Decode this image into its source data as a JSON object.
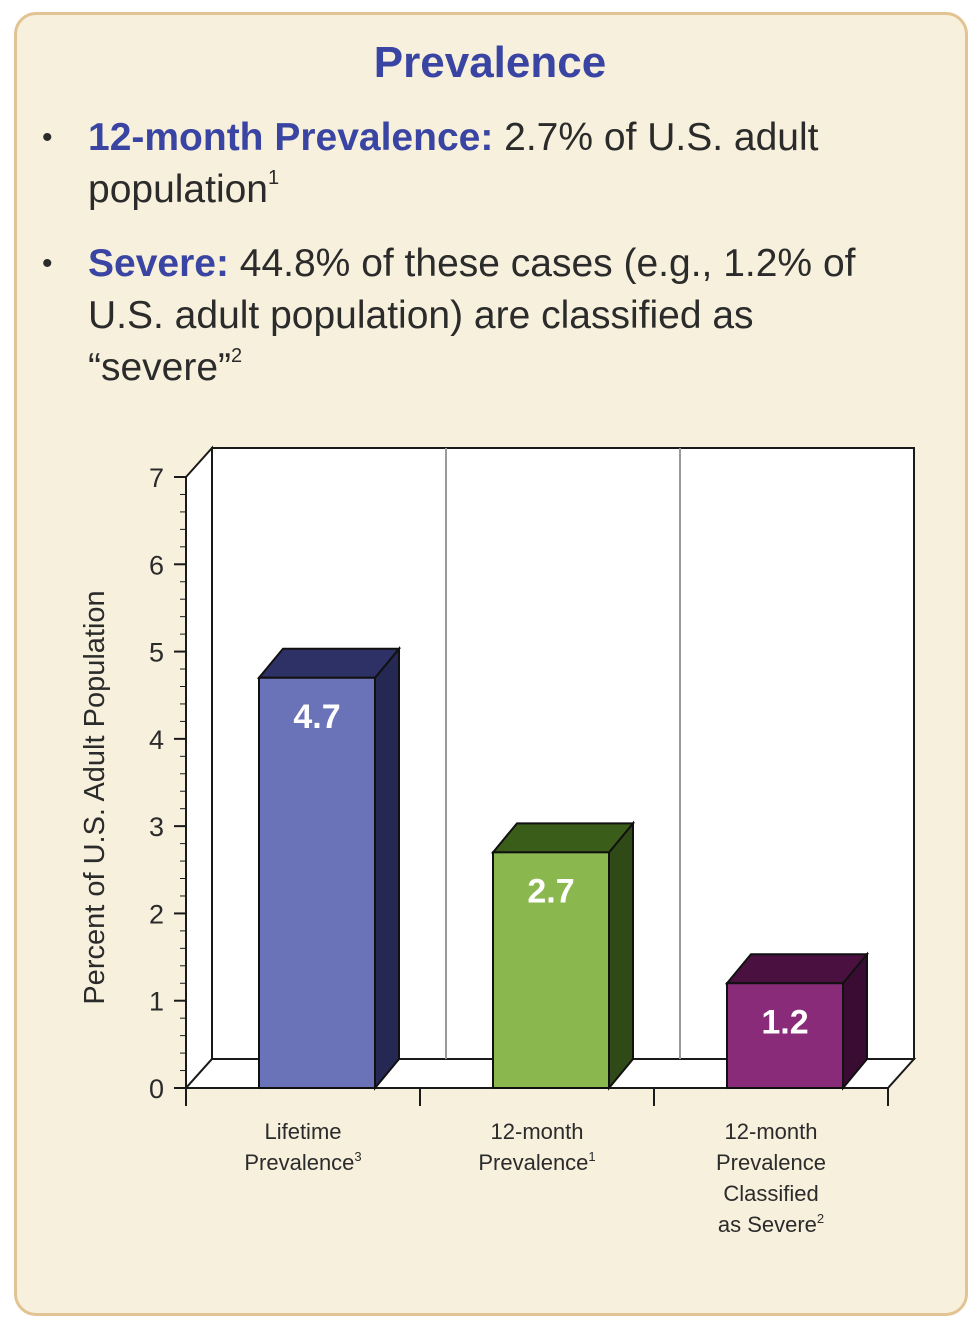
{
  "page": {
    "title": "Prevalence",
    "bullets": [
      {
        "lead": "12-month Prevalence:",
        "text": " 2.7% of U.S. adult population",
        "ref": "1"
      },
      {
        "lead": "Severe:",
        "text": " 44.8% of these cases (e.g., 1.2% of U.S. adult population) are classified as “severe”",
        "ref": "2"
      }
    ]
  },
  "colors": {
    "card_bg": "#f6f0dc",
    "card_border": "#e2c392",
    "accent": "#3a45a3",
    "bar1_front": "#6b73b8",
    "bar1_top": "#2e3166",
    "bar1_side": "#252852",
    "bar2_front": "#8bb84e",
    "bar2_top": "#3b5d1a",
    "bar2_side": "#2f4a16",
    "bar3_front": "#8a2b7a",
    "bar3_top": "#4a1040",
    "bar3_side": "#3a0c33"
  },
  "chart_data": {
    "type": "bar",
    "title": "",
    "xlabel": "",
    "ylabel": "Percent of U.S. Adult Population",
    "ylim": [
      0,
      7
    ],
    "yticks": [
      "0",
      "1",
      "2",
      "3",
      "4",
      "5",
      "6",
      "7"
    ],
    "categories": [
      {
        "lines": [
          "Lifetime",
          "Prevalence"
        ],
        "ref": "3"
      },
      {
        "lines": [
          "12-month",
          "Prevalence"
        ],
        "ref": "1"
      },
      {
        "lines": [
          "12-month",
          "Prevalence",
          "Classified",
          "as Severe"
        ],
        "ref": "2"
      }
    ],
    "values": [
      4.7,
      2.7,
      1.2
    ],
    "value_labels": [
      "4.7",
      "2.7",
      "1.2"
    ]
  }
}
